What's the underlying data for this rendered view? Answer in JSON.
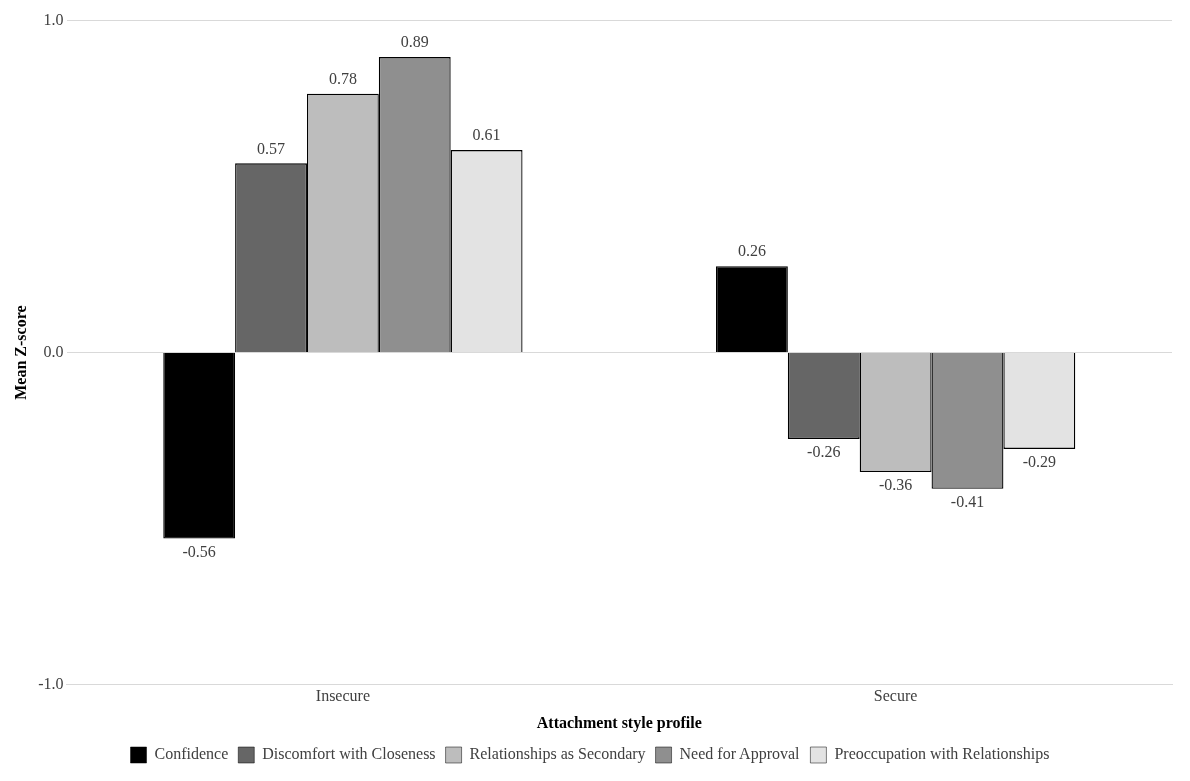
{
  "chart_data": {
    "type": "bar",
    "xlabel": "Attachment style profile",
    "ylabel": "Mean Z-score",
    "categories": [
      "Insecure",
      "Secure"
    ],
    "series": [
      {
        "name": "Confidence",
        "color": "#000000",
        "values": [
          -0.56,
          0.26
        ]
      },
      {
        "name": "Discomfort with Closeness",
        "color": "#666666",
        "values": [
          0.57,
          -0.26
        ]
      },
      {
        "name": "Relationships as Secondary",
        "color": "#bdbdbd",
        "values": [
          0.78,
          -0.36
        ]
      },
      {
        "name": "Need for Approval",
        "color": "#8f8f8f",
        "values": [
          0.89,
          -0.41
        ]
      },
      {
        "name": "Preoccupation with Relationships",
        "color": "#e3e3e3",
        "values": [
          0.61,
          -0.29
        ]
      }
    ],
    "ylim": [
      -1,
      1
    ],
    "yticks": [
      {
        "value": -1,
        "label": "-1.0"
      },
      {
        "value": 0,
        "label": "0.0"
      },
      {
        "value": 1,
        "label": "1.0"
      }
    ],
    "grid": "y",
    "legend": "bottom",
    "data_labels": true
  }
}
